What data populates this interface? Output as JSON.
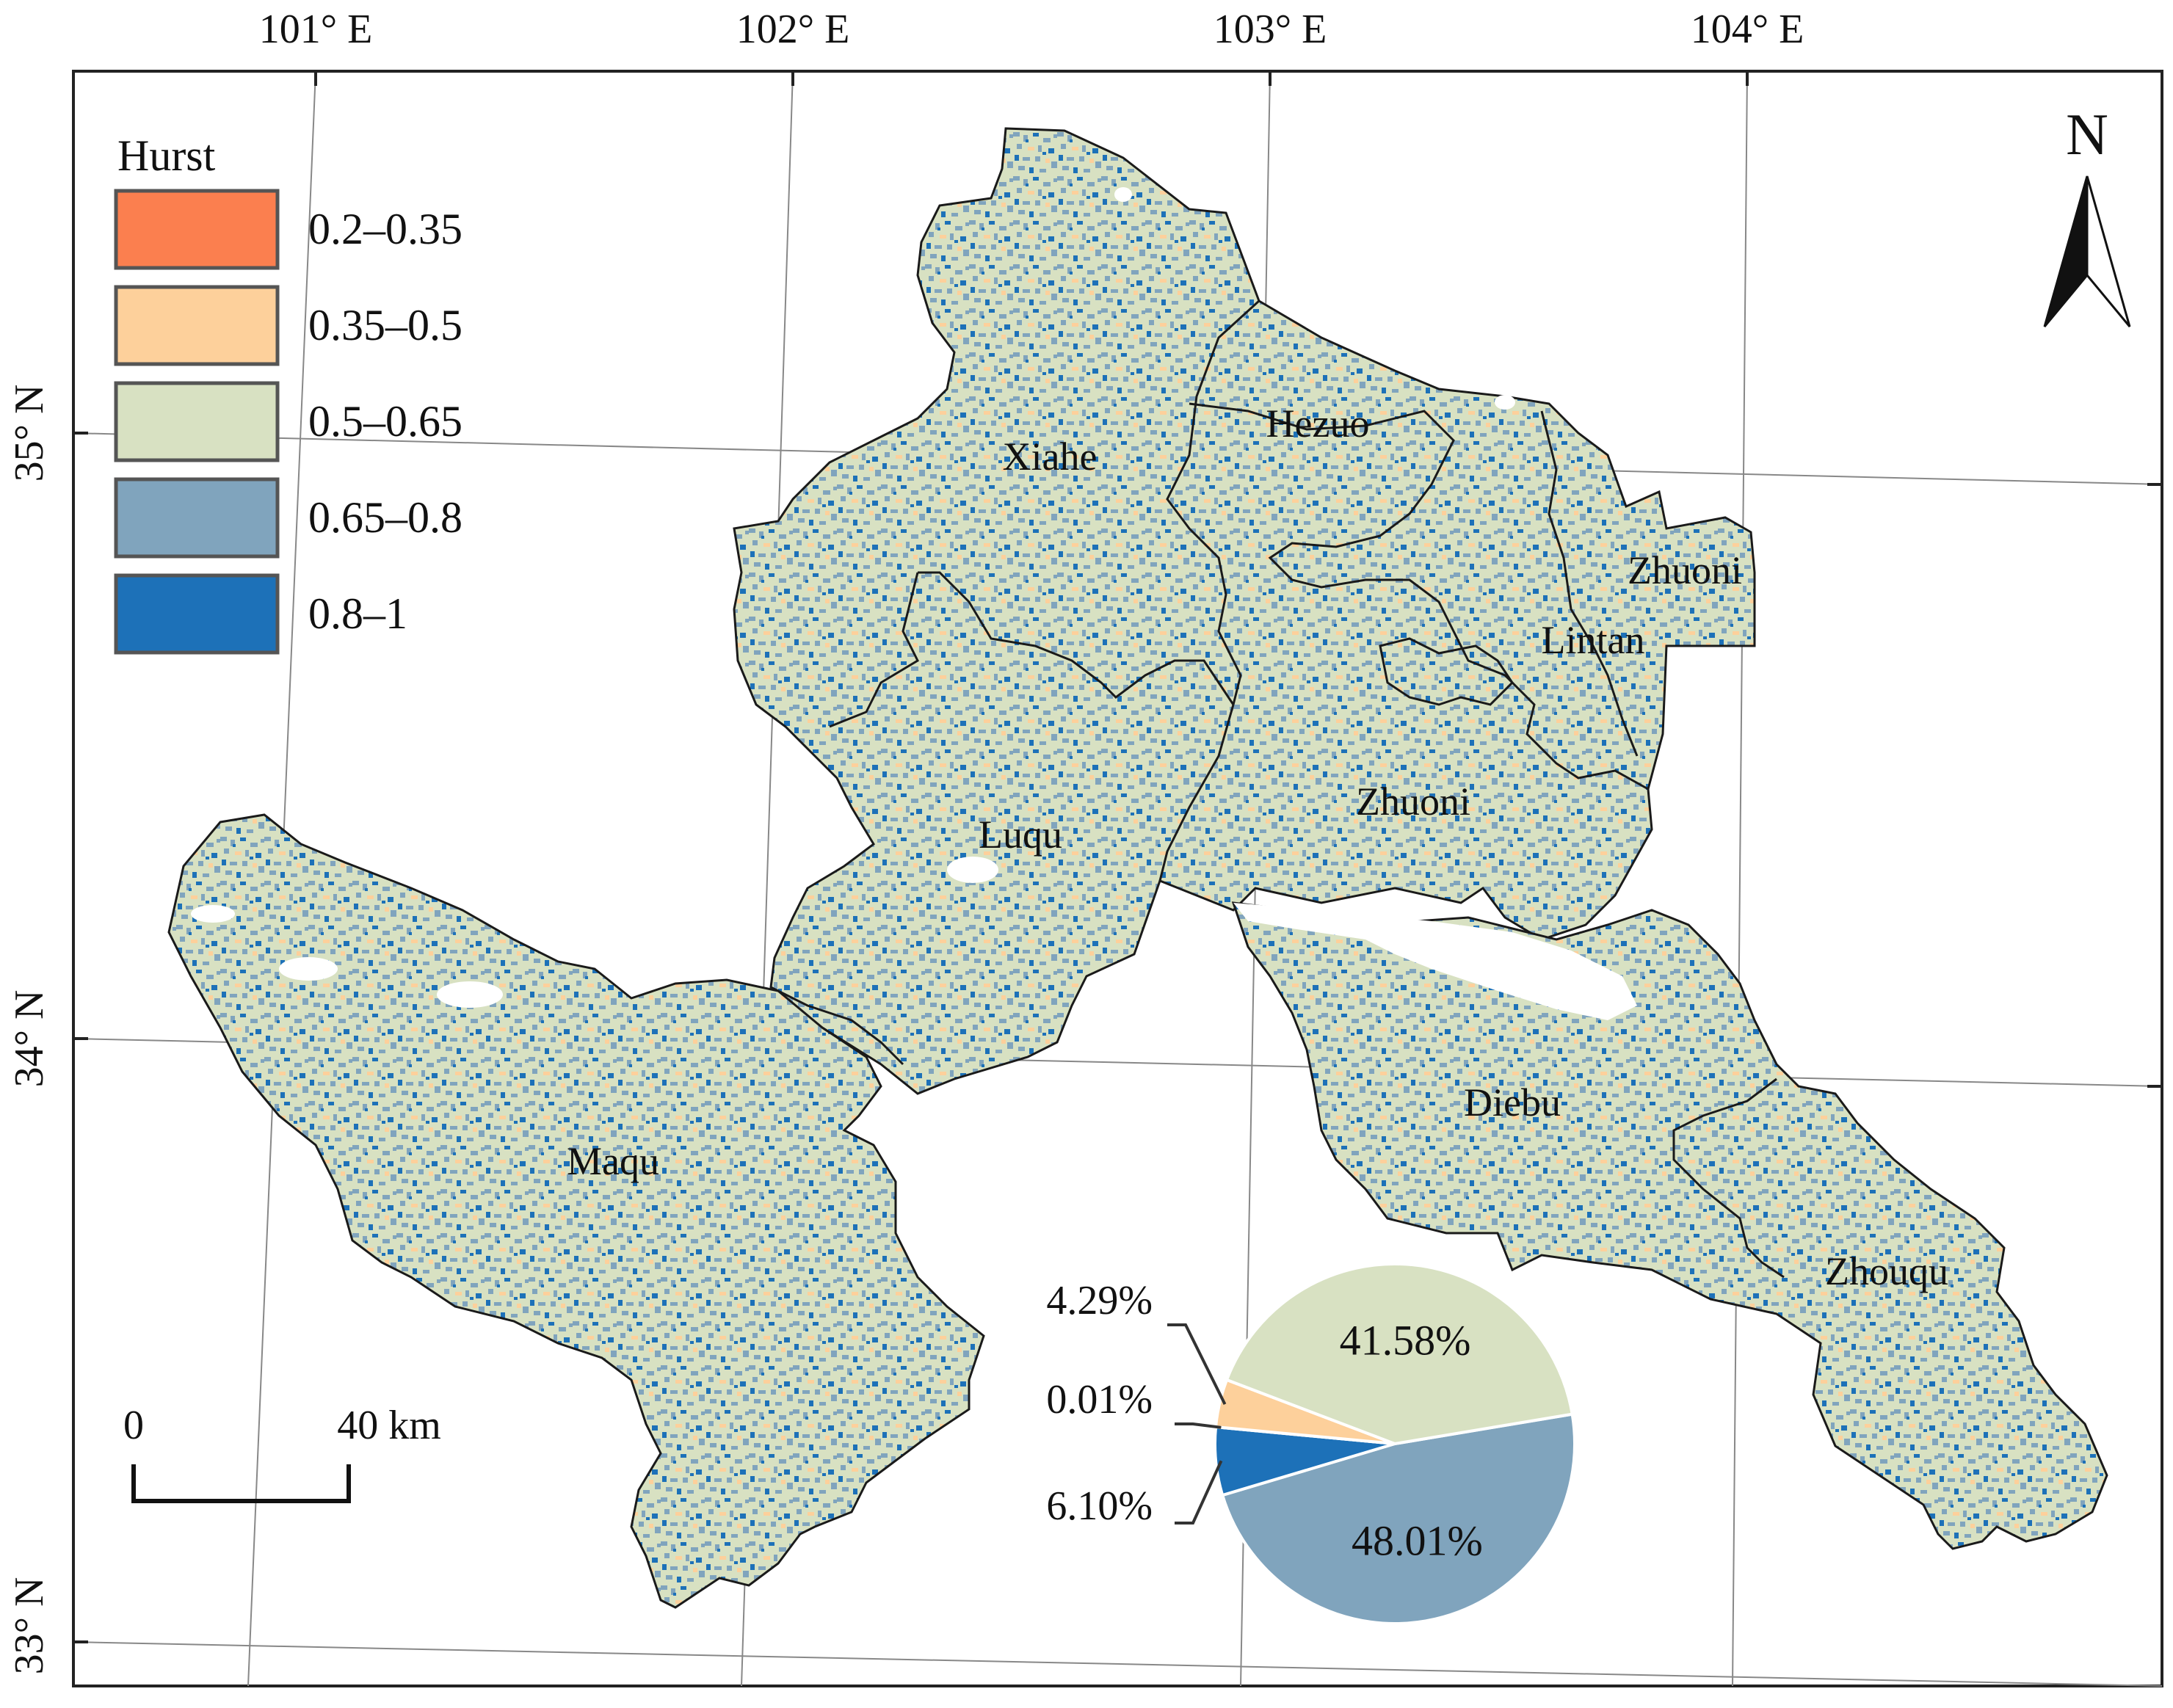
{
  "map": {
    "coords": {
      "lon": [
        "101° E",
        "102° E",
        "103° E",
        "104° E"
      ],
      "lat": [
        "35° N",
        "34° N",
        "33° N"
      ]
    },
    "legend": {
      "title": "Hurst",
      "items": [
        {
          "label": "0.2–0.35",
          "color": "#fb7f4f"
        },
        {
          "label": "0.35–0.5",
          "color": "#fdd09b"
        },
        {
          "label": "0.5–0.65",
          "color": "#d8e1c2"
        },
        {
          "label": "0.65–0.8",
          "color": "#80a4bd"
        },
        {
          "label": "0.8–1",
          "color": "#1d71b8"
        }
      ]
    },
    "north_arrow": {
      "label": "N"
    },
    "scale_bar": {
      "start": "0",
      "end": "40 km"
    },
    "places": [
      "Xiahe",
      "Hezuo",
      "Zhuoni",
      "Lintan",
      "Zhuoni",
      "Luqu",
      "Maqu",
      "Diebu",
      "Zhouqu"
    ],
    "pie": {
      "slices": [
        {
          "class": "0.2–0.35",
          "percent": 0.01,
          "label": "0.01%"
        },
        {
          "class": "0.35–0.5",
          "percent": 4.29,
          "label": "4.29%"
        },
        {
          "class": "0.5–0.65",
          "percent": 41.58,
          "label": "41.58%"
        },
        {
          "class": "0.65–0.8",
          "percent": 48.01,
          "label": "48.01%"
        },
        {
          "class": "0.8–1",
          "percent": 6.1,
          "label": "6.10%"
        }
      ]
    }
  }
}
